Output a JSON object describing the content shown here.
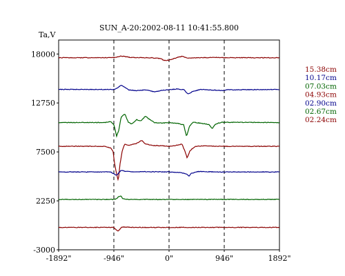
{
  "chart_data": {
    "type": "line",
    "title": "SUN_A-20:2002-08-11 10:41:55.800",
    "ylabel": "Ta,V",
    "xlabel": "",
    "xlim": [
      -1892,
      1892
    ],
    "ylim": [
      -3000,
      19500
    ],
    "x_ticks": [
      -1892,
      -946,
      0,
      946,
      1892
    ],
    "x_tick_labels": [
      "-1892\"",
      "-946\"",
      "0\"",
      "946\"",
      "1892\""
    ],
    "y_ticks": [
      18000,
      12750,
      7500,
      2250,
      -3000
    ],
    "y_tick_labels": [
      "18000",
      "12750",
      "7500",
      "2250",
      "-3000"
    ],
    "vlines": [
      -946,
      0,
      946
    ],
    "grid": false,
    "legend_position": "right",
    "series": [
      {
        "name": "15.38cm",
        "color": "#8b0000",
        "baseline": 17600,
        "features": [
          [
            -1892,
            0
          ],
          [
            -1000,
            0
          ],
          [
            -900,
            60
          ],
          [
            -820,
            180
          ],
          [
            -760,
            140
          ],
          [
            -650,
            20
          ],
          [
            -300,
            0
          ],
          [
            -150,
            -80
          ],
          [
            -80,
            -300
          ],
          [
            0,
            -260
          ],
          [
            150,
            50
          ],
          [
            230,
            150
          ],
          [
            330,
            -60
          ],
          [
            500,
            0
          ],
          [
            800,
            40
          ],
          [
            1000,
            0
          ],
          [
            1892,
            0
          ]
        ]
      },
      {
        "name": "10.17cm",
        "color": "#00008b",
        "baseline": 14200,
        "features": [
          [
            -1892,
            0
          ],
          [
            -1100,
            0
          ],
          [
            -950,
            -20
          ],
          [
            -890,
            150
          ],
          [
            -820,
            450
          ],
          [
            -760,
            220
          ],
          [
            -690,
            -60
          ],
          [
            -560,
            -120
          ],
          [
            -400,
            -60
          ],
          [
            -250,
            -260
          ],
          [
            -120,
            -80
          ],
          [
            0,
            -40
          ],
          [
            150,
            60
          ],
          [
            260,
            -50
          ],
          [
            320,
            -480
          ],
          [
            420,
            -200
          ],
          [
            540,
            0
          ],
          [
            800,
            -80
          ],
          [
            900,
            -120
          ],
          [
            1000,
            -40
          ],
          [
            1892,
            0
          ]
        ]
      },
      {
        "name": "07.03cm",
        "color": "#006400",
        "baseline": 10650,
        "features": [
          [
            -1892,
            0
          ],
          [
            -1100,
            0
          ],
          [
            -1000,
            100
          ],
          [
            -940,
            -300
          ],
          [
            -900,
            -1500
          ],
          [
            -860,
            -800
          ],
          [
            -820,
            600
          ],
          [
            -760,
            950
          ],
          [
            -700,
            50
          ],
          [
            -640,
            -160
          ],
          [
            -560,
            300
          ],
          [
            -480,
            200
          ],
          [
            -400,
            700
          ],
          [
            -350,
            400
          ],
          [
            -250,
            0
          ],
          [
            -120,
            -60
          ],
          [
            0,
            0
          ],
          [
            150,
            -100
          ],
          [
            250,
            -250
          ],
          [
            300,
            -1500
          ],
          [
            350,
            -400
          ],
          [
            420,
            50
          ],
          [
            560,
            -100
          ],
          [
            680,
            -200
          ],
          [
            740,
            -640
          ],
          [
            800,
            -150
          ],
          [
            900,
            30
          ],
          [
            1892,
            0
          ]
        ]
      },
      {
        "name": "04.93cm",
        "color": "#8b0000",
        "baseline": 8100,
        "features": [
          [
            -1892,
            0
          ],
          [
            -1100,
            0
          ],
          [
            -1000,
            -200
          ],
          [
            -960,
            -500
          ],
          [
            -930,
            -2000
          ],
          [
            -900,
            -2900
          ],
          [
            -870,
            -3700
          ],
          [
            -840,
            -1900
          ],
          [
            -800,
            -400
          ],
          [
            -760,
            200
          ],
          [
            -700,
            100
          ],
          [
            -560,
            300
          ],
          [
            -460,
            650
          ],
          [
            -420,
            300
          ],
          [
            -300,
            100
          ],
          [
            -100,
            50
          ],
          [
            0,
            0
          ],
          [
            150,
            120
          ],
          [
            220,
            250
          ],
          [
            280,
            -650
          ],
          [
            310,
            -1250
          ],
          [
            360,
            -450
          ],
          [
            450,
            0
          ],
          [
            600,
            50
          ],
          [
            800,
            0
          ],
          [
            1892,
            0
          ]
        ]
      },
      {
        "name": "02.90cm",
        "color": "#00008b",
        "baseline": 5350,
        "features": [
          [
            -1892,
            0
          ],
          [
            -1000,
            0
          ],
          [
            -950,
            -200
          ],
          [
            -900,
            -360
          ],
          [
            -860,
            -100
          ],
          [
            -820,
            180
          ],
          [
            -760,
            80
          ],
          [
            -600,
            0
          ],
          [
            -400,
            30
          ],
          [
            0,
            0
          ],
          [
            200,
            -80
          ],
          [
            300,
            -200
          ],
          [
            340,
            -480
          ],
          [
            380,
            -150
          ],
          [
            500,
            50
          ],
          [
            800,
            0
          ],
          [
            1892,
            0
          ]
        ]
      },
      {
        "name": "02.67cm",
        "color": "#006400",
        "baseline": 2400,
        "features": [
          [
            -1892,
            0
          ],
          [
            -1000,
            0
          ],
          [
            -950,
            0
          ],
          [
            -900,
            60
          ],
          [
            -860,
            360
          ],
          [
            -820,
            330
          ],
          [
            -790,
            80
          ],
          [
            -740,
            0
          ],
          [
            -500,
            0
          ],
          [
            0,
            0
          ],
          [
            1892,
            0
          ]
        ]
      },
      {
        "name": "02.24cm",
        "color": "#8b0000",
        "baseline": -600,
        "features": [
          [
            -1892,
            0
          ],
          [
            -1000,
            0
          ],
          [
            -950,
            0
          ],
          [
            -920,
            -150
          ],
          [
            -880,
            -430
          ],
          [
            -850,
            -250
          ],
          [
            -820,
            0
          ],
          [
            -760,
            50
          ],
          [
            -600,
            0
          ],
          [
            0,
            0
          ],
          [
            1892,
            0
          ]
        ]
      }
    ]
  }
}
